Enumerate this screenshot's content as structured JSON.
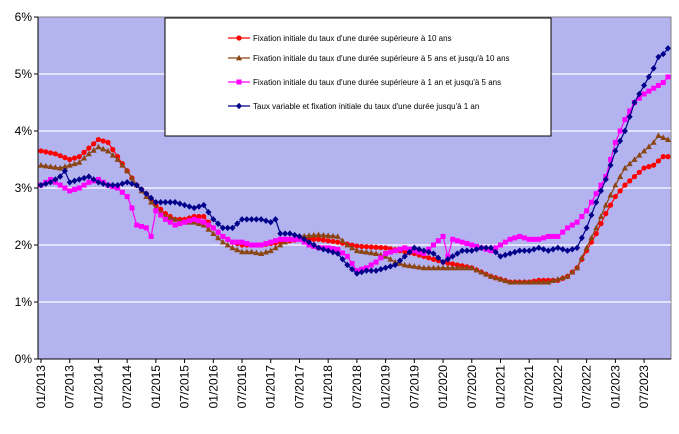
{
  "chart_data": {
    "type": "line",
    "title": "",
    "xlabel": "",
    "ylabel": "",
    "ylim": [
      0,
      6
    ],
    "y_ticks": [
      "0%",
      "1%",
      "2%",
      "3%",
      "4%",
      "5%",
      "6%"
    ],
    "y_tick_values": [
      0,
      1,
      2,
      3,
      4,
      5,
      6
    ],
    "x_ticks": [
      "01/2013",
      "07/2013",
      "01/2014",
      "07/2014",
      "01/2015",
      "07/2015",
      "01/2016",
      "07/2016",
      "01/2017",
      "07/2017",
      "01/2018",
      "07/2018",
      "01/2019",
      "07/2019",
      "01/2020",
      "07/2020",
      "01/2021",
      "07/2021",
      "01/2022",
      "07/2022",
      "01/2023",
      "07/2023"
    ],
    "x_tick_months": [
      0,
      6,
      12,
      18,
      24,
      30,
      36,
      42,
      48,
      54,
      60,
      66,
      72,
      78,
      84,
      90,
      96,
      102,
      108,
      114,
      120,
      126
    ],
    "x_range_months": [
      0,
      131
    ],
    "grid": true,
    "legend_position": "top-center",
    "plot_background": "#B3B3F0",
    "series": [
      {
        "name": "Fixation initiale du taux d'une durée supérieure à 10 ans",
        "color": "#FF0000",
        "marker": "circle",
        "anchors": [
          [
            0,
            3.65
          ],
          [
            3,
            3.6
          ],
          [
            6,
            3.5
          ],
          [
            8,
            3.55
          ],
          [
            10,
            3.7
          ],
          [
            12,
            3.85
          ],
          [
            14,
            3.8
          ],
          [
            16,
            3.55
          ],
          [
            18,
            3.3
          ],
          [
            20,
            3.05
          ],
          [
            22,
            2.9
          ],
          [
            24,
            2.7
          ],
          [
            26,
            2.55
          ],
          [
            28,
            2.45
          ],
          [
            30,
            2.45
          ],
          [
            32,
            2.5
          ],
          [
            34,
            2.5
          ],
          [
            36,
            2.3
          ],
          [
            38,
            2.15
          ],
          [
            40,
            2.05
          ],
          [
            42,
            2.0
          ],
          [
            46,
            2.0
          ],
          [
            50,
            2.05
          ],
          [
            54,
            2.1
          ],
          [
            58,
            2.1
          ],
          [
            62,
            2.05
          ],
          [
            66,
            1.98
          ],
          [
            72,
            1.95
          ],
          [
            78,
            1.85
          ],
          [
            84,
            1.7
          ],
          [
            90,
            1.6
          ],
          [
            94,
            1.45
          ],
          [
            98,
            1.35
          ],
          [
            102,
            1.35
          ],
          [
            104,
            1.38
          ],
          [
            108,
            1.38
          ],
          [
            110,
            1.45
          ],
          [
            112,
            1.6
          ],
          [
            114,
            1.9
          ],
          [
            116,
            2.2
          ],
          [
            118,
            2.55
          ],
          [
            120,
            2.85
          ],
          [
            122,
            3.05
          ],
          [
            124,
            3.2
          ],
          [
            126,
            3.35
          ],
          [
            128,
            3.4
          ],
          [
            130,
            3.55
          ]
        ]
      },
      {
        "name": "Fixation initiale du taux d'une durée supérieure à 5 ans et  jusqu'à 10 ans",
        "color": "#8B4513",
        "marker": "triangle",
        "anchors": [
          [
            0,
            3.4
          ],
          [
            4,
            3.35
          ],
          [
            8,
            3.45
          ],
          [
            10,
            3.6
          ],
          [
            12,
            3.72
          ],
          [
            14,
            3.65
          ],
          [
            16,
            3.5
          ],
          [
            18,
            3.3
          ],
          [
            20,
            3.05
          ],
          [
            22,
            2.85
          ],
          [
            24,
            2.65
          ],
          [
            26,
            2.5
          ],
          [
            28,
            2.45
          ],
          [
            30,
            2.4
          ],
          [
            32,
            2.4
          ],
          [
            34,
            2.35
          ],
          [
            36,
            2.2
          ],
          [
            38,
            2.05
          ],
          [
            40,
            1.95
          ],
          [
            42,
            1.88
          ],
          [
            44,
            1.88
          ],
          [
            46,
            1.85
          ],
          [
            48,
            1.9
          ],
          [
            50,
            2.0
          ],
          [
            52,
            2.1
          ],
          [
            54,
            2.15
          ],
          [
            58,
            2.18
          ],
          [
            62,
            2.15
          ],
          [
            64,
            2.0
          ],
          [
            66,
            1.9
          ],
          [
            70,
            1.85
          ],
          [
            72,
            1.8
          ],
          [
            74,
            1.7
          ],
          [
            76,
            1.65
          ],
          [
            80,
            1.6
          ],
          [
            84,
            1.6
          ],
          [
            88,
            1.6
          ],
          [
            90,
            1.6
          ],
          [
            94,
            1.45
          ],
          [
            98,
            1.35
          ],
          [
            102,
            1.35
          ],
          [
            106,
            1.35
          ],
          [
            108,
            1.4
          ],
          [
            110,
            1.45
          ],
          [
            112,
            1.6
          ],
          [
            114,
            1.95
          ],
          [
            116,
            2.3
          ],
          [
            118,
            2.7
          ],
          [
            120,
            3.05
          ],
          [
            122,
            3.35
          ],
          [
            124,
            3.5
          ],
          [
            126,
            3.65
          ],
          [
            128,
            3.8
          ],
          [
            129,
            3.92
          ],
          [
            131,
            3.85
          ]
        ]
      },
      {
        "name": "Fixation initiale du taux d'une durée supérieure à 1 an et  jusqu'à 5 ans",
        "color": "#FF00FF",
        "marker": "square",
        "anchors": [
          [
            0,
            3.05
          ],
          [
            2,
            3.15
          ],
          [
            4,
            3.05
          ],
          [
            6,
            2.95
          ],
          [
            8,
            3.0
          ],
          [
            10,
            3.1
          ],
          [
            12,
            3.15
          ],
          [
            14,
            3.05
          ],
          [
            16,
            3.0
          ],
          [
            18,
            2.85
          ],
          [
            19,
            2.65
          ],
          [
            20,
            2.35
          ],
          [
            22,
            2.3
          ],
          [
            23,
            2.15
          ],
          [
            24,
            2.6
          ],
          [
            26,
            2.45
          ],
          [
            28,
            2.35
          ],
          [
            30,
            2.4
          ],
          [
            32,
            2.45
          ],
          [
            34,
            2.4
          ],
          [
            36,
            2.3
          ],
          [
            38,
            2.15
          ],
          [
            40,
            2.05
          ],
          [
            42,
            2.05
          ],
          [
            44,
            2.0
          ],
          [
            46,
            2.0
          ],
          [
            48,
            2.05
          ],
          [
            50,
            2.1
          ],
          [
            52,
            2.1
          ],
          [
            54,
            2.1
          ],
          [
            56,
            2.0
          ],
          [
            58,
            1.95
          ],
          [
            60,
            1.95
          ],
          [
            62,
            1.92
          ],
          [
            64,
            1.8
          ],
          [
            66,
            1.55
          ],
          [
            68,
            1.6
          ],
          [
            70,
            1.7
          ],
          [
            72,
            1.85
          ],
          [
            74,
            1.9
          ],
          [
            76,
            1.95
          ],
          [
            78,
            1.9
          ],
          [
            80,
            1.85
          ],
          [
            82,
            2.0
          ],
          [
            84,
            2.15
          ],
          [
            85,
            1.8
          ],
          [
            86,
            2.1
          ],
          [
            88,
            2.05
          ],
          [
            90,
            2.0
          ],
          [
            92,
            1.95
          ],
          [
            94,
            1.9
          ],
          [
            96,
            2.0
          ],
          [
            98,
            2.1
          ],
          [
            100,
            2.15
          ],
          [
            102,
            2.1
          ],
          [
            104,
            2.1
          ],
          [
            106,
            2.15
          ],
          [
            108,
            2.15
          ],
          [
            110,
            2.3
          ],
          [
            112,
            2.4
          ],
          [
            114,
            2.6
          ],
          [
            116,
            2.9
          ],
          [
            118,
            3.2
          ],
          [
            120,
            3.8
          ],
          [
            122,
            4.2
          ],
          [
            124,
            4.5
          ],
          [
            126,
            4.65
          ],
          [
            128,
            4.75
          ],
          [
            130,
            4.85
          ],
          [
            131,
            4.95
          ]
        ]
      },
      {
        "name": "Taux variable et fixation initiale du taux d'une durée jusqu'à 1 an",
        "color": "#00008B",
        "marker": "diamond",
        "anchors": [
          [
            0,
            3.05
          ],
          [
            2,
            3.1
          ],
          [
            4,
            3.2
          ],
          [
            5,
            3.3
          ],
          [
            6,
            3.1
          ],
          [
            8,
            3.15
          ],
          [
            10,
            3.2
          ],
          [
            12,
            3.1
          ],
          [
            14,
            3.05
          ],
          [
            16,
            3.05
          ],
          [
            18,
            3.1
          ],
          [
            20,
            3.05
          ],
          [
            22,
            2.9
          ],
          [
            24,
            2.75
          ],
          [
            26,
            2.75
          ],
          [
            28,
            2.75
          ],
          [
            30,
            2.7
          ],
          [
            32,
            2.65
          ],
          [
            34,
            2.7
          ],
          [
            36,
            2.45
          ],
          [
            38,
            2.3
          ],
          [
            40,
            2.3
          ],
          [
            42,
            2.45
          ],
          [
            44,
            2.45
          ],
          [
            46,
            2.45
          ],
          [
            48,
            2.4
          ],
          [
            49,
            2.45
          ],
          [
            50,
            2.2
          ],
          [
            52,
            2.2
          ],
          [
            54,
            2.15
          ],
          [
            56,
            2.05
          ],
          [
            58,
            1.95
          ],
          [
            60,
            1.9
          ],
          [
            62,
            1.85
          ],
          [
            64,
            1.65
          ],
          [
            66,
            1.5
          ],
          [
            68,
            1.55
          ],
          [
            70,
            1.55
          ],
          [
            72,
            1.6
          ],
          [
            74,
            1.65
          ],
          [
            76,
            1.8
          ],
          [
            78,
            1.95
          ],
          [
            80,
            1.9
          ],
          [
            82,
            1.85
          ],
          [
            84,
            1.7
          ],
          [
            86,
            1.8
          ],
          [
            88,
            1.9
          ],
          [
            90,
            1.9
          ],
          [
            92,
            1.95
          ],
          [
            94,
            1.95
          ],
          [
            96,
            1.8
          ],
          [
            98,
            1.85
          ],
          [
            100,
            1.9
          ],
          [
            102,
            1.9
          ],
          [
            104,
            1.95
          ],
          [
            106,
            1.9
          ],
          [
            108,
            1.95
          ],
          [
            110,
            1.9
          ],
          [
            112,
            1.95
          ],
          [
            114,
            2.3
          ],
          [
            116,
            2.75
          ],
          [
            118,
            3.15
          ],
          [
            120,
            3.65
          ],
          [
            122,
            4.0
          ],
          [
            124,
            4.5
          ],
          [
            126,
            4.8
          ],
          [
            128,
            5.1
          ],
          [
            129,
            5.3
          ],
          [
            130,
            5.35
          ],
          [
            131,
            5.45
          ]
        ]
      }
    ]
  }
}
